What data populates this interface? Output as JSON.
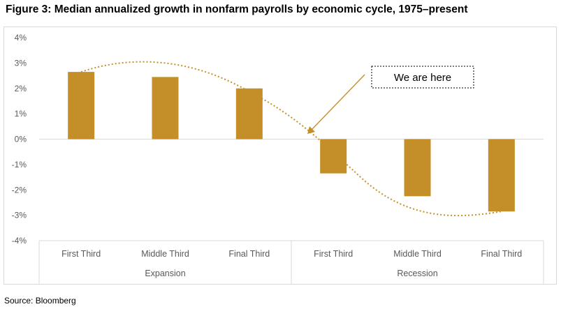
{
  "figure_title": "Figure 3: Median annualized growth in nonfarm payrolls by economic cycle, 1975–present",
  "source": "Source: Bloomberg",
  "annotation": "We are here",
  "colors": {
    "bar": "#c48f28",
    "curve": "#c48f28",
    "axis": "#d9d9d9",
    "text": "#595959"
  },
  "chart_data": {
    "type": "bar",
    "title": "Figure 3: Median annualized growth in nonfarm payrolls by economic cycle, 1975–present",
    "categories": [
      "First Third",
      "Middle Third",
      "Final Third",
      "First Third",
      "Middle Third",
      "Final Third"
    ],
    "groups": [
      {
        "label": "Expansion",
        "categories": [
          "First Third",
          "Middle Third",
          "Final Third"
        ]
      },
      {
        "label": "Recession",
        "categories": [
          "First Third",
          "Middle Third",
          "Final Third"
        ]
      }
    ],
    "values": [
      2.65,
      2.45,
      2.0,
      -1.35,
      -2.25,
      -2.85
    ],
    "ylim": [
      -4,
      4
    ],
    "yticks": [
      4,
      3,
      2,
      1,
      0,
      -1,
      -2,
      -3,
      -4
    ],
    "ytick_labels": [
      "4%",
      "3%",
      "2%",
      "1%",
      "0%",
      "-1%",
      "-2%",
      "-3%",
      "-4%"
    ],
    "trend_line": {
      "style": "dotted",
      "peak_value": 3.0,
      "trough_value": -2.95
    },
    "annotation": "We are here",
    "xlabel": "",
    "ylabel": "",
    "grid": false
  }
}
